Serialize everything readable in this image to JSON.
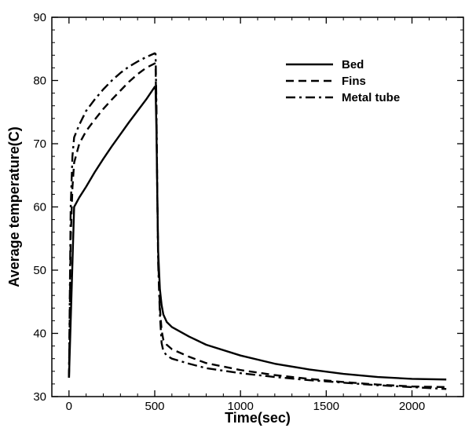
{
  "chart_data": {
    "type": "line",
    "title": "",
    "xlabel": "Time(sec)",
    "ylabel": "Average temperature(C)",
    "xlim": [
      -100,
      2300
    ],
    "ylim": [
      30,
      90
    ],
    "xticks": [
      0,
      500,
      1000,
      1500,
      2000
    ],
    "yticks": [
      30,
      40,
      50,
      60,
      70,
      80,
      90
    ],
    "grid": false,
    "legend_position": "top-right",
    "series": [
      {
        "name": "Bed",
        "dash": "solid",
        "x": [
          0,
          30,
          60,
          100,
          150,
          200,
          250,
          300,
          350,
          400,
          450,
          500,
          505,
          510,
          515,
          520,
          530,
          540,
          550,
          570,
          600,
          700,
          800,
          1000,
          1200,
          1400,
          1600,
          1800,
          2000,
          2200
        ],
        "y": [
          33,
          60,
          61.5,
          63.2,
          65.5,
          67.6,
          69.6,
          71.5,
          73.4,
          75.2,
          77.0,
          79.0,
          78.5,
          72,
          62,
          53,
          47,
          44.5,
          43,
          41.8,
          41,
          39.5,
          38.2,
          36.5,
          35.2,
          34.3,
          33.6,
          33.1,
          32.8,
          32.7
        ]
      },
      {
        "name": "Fins",
        "dash": "dashed",
        "x": [
          0,
          10,
          20,
          30,
          60,
          100,
          150,
          200,
          250,
          300,
          350,
          400,
          450,
          500,
          505,
          510,
          515,
          520,
          530,
          540,
          550,
          570,
          600,
          700,
          800,
          1000,
          1200,
          1400,
          1600,
          1800,
          2000,
          2200
        ],
        "y": [
          33,
          55,
          63,
          67,
          70,
          72,
          73.8,
          75.5,
          77.0,
          78.4,
          79.8,
          81.0,
          82.0,
          82.7,
          82.0,
          74,
          62,
          52,
          44,
          40.5,
          39,
          38.2,
          37.5,
          36.3,
          35.3,
          34.2,
          33.4,
          32.8,
          32.3,
          31.9,
          31.6,
          31.5
        ]
      },
      {
        "name": "Metal tube",
        "dash": "dashdot",
        "x": [
          0,
          10,
          20,
          30,
          60,
          100,
          150,
          200,
          250,
          300,
          350,
          400,
          450,
          500,
          505,
          510,
          515,
          520,
          530,
          540,
          550,
          570,
          600,
          700,
          800,
          1000,
          1200,
          1400,
          1600,
          1800,
          2000,
          2200
        ],
        "y": [
          33,
          60,
          68,
          71,
          73,
          75.2,
          77.0,
          78.6,
          80.0,
          81.2,
          82.2,
          83.0,
          83.7,
          84.3,
          84.2,
          76,
          62,
          51,
          43,
          38.5,
          37.2,
          36.5,
          36,
          35.2,
          34.5,
          33.7,
          33.1,
          32.6,
          32.2,
          31.8,
          31.5,
          31.2
        ]
      }
    ]
  }
}
